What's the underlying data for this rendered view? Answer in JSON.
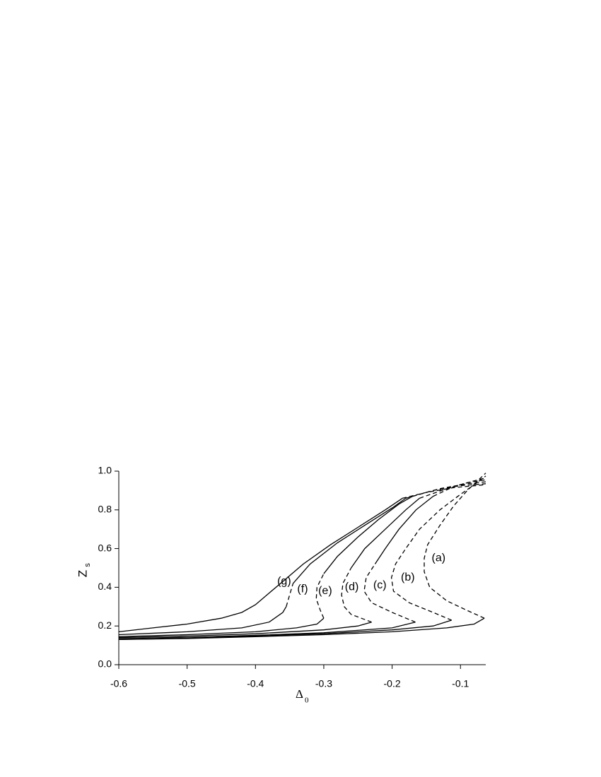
{
  "chart_data": {
    "type": "line",
    "xlabel": {
      "main": "Δ",
      "sub": "0"
    },
    "ylabel": {
      "main": "Z",
      "sub": "s"
    },
    "xlim": [
      -0.6,
      -0.063
    ],
    "ylim": [
      0,
      1
    ],
    "xticks": [
      -0.6,
      -0.5,
      -0.4,
      -0.3,
      -0.2,
      -0.1
    ],
    "yticks": [
      {
        "value": 0,
        "label": "0.0"
      },
      0.2,
      0.4,
      0.6,
      0.8,
      {
        "value": 1,
        "label": "1.0"
      }
    ],
    "grid": false,
    "series": [
      {
        "color": "#000",
        "dashed": false,
        "x": [
          -0.6,
          -0.5,
          -0.4,
          -0.3,
          -0.2,
          -0.12,
          -0.08,
          -0.065
        ],
        "values": [
          0.13,
          0.135,
          0.145,
          0.155,
          0.17,
          0.19,
          0.21,
          0.24
        ]
      },
      {
        "color": "#000",
        "dashed": true,
        "x": [
          -0.065,
          -0.09,
          -0.12,
          -0.145,
          -0.153,
          -0.153,
          -0.148,
          -0.13,
          -0.11,
          -0.09,
          -0.075,
          -0.063
        ],
        "values": [
          0.24,
          0.28,
          0.33,
          0.4,
          0.48,
          0.55,
          0.62,
          0.72,
          0.82,
          0.9,
          0.95,
          0.99
        ]
      },
      {
        "color": "#000",
        "dashed": false,
        "x": [
          -0.6,
          -0.5,
          -0.4,
          -0.3,
          -0.2,
          -0.14,
          -0.113
        ],
        "values": [
          0.13,
          0.137,
          0.148,
          0.16,
          0.18,
          0.2,
          0.23
        ]
      },
      {
        "color": "#000",
        "dashed": true,
        "x": [
          -0.113,
          -0.14,
          -0.175,
          -0.198,
          -0.201,
          -0.195,
          -0.18,
          -0.16,
          -0.13,
          -0.1,
          -0.08,
          -0.063
        ],
        "values": [
          0.23,
          0.27,
          0.32,
          0.38,
          0.45,
          0.52,
          0.6,
          0.7,
          0.8,
          0.88,
          0.93,
          0.975
        ]
      },
      {
        "color": "#000",
        "dashed": false,
        "x": [
          -0.6,
          -0.5,
          -0.4,
          -0.3,
          -0.2,
          -0.166
        ],
        "values": [
          0.135,
          0.142,
          0.152,
          0.165,
          0.19,
          0.22
        ]
      },
      {
        "color": "#000",
        "dashed": true,
        "x": [
          -0.166,
          -0.2,
          -0.23,
          -0.241,
          -0.238,
          -0.225
        ],
        "values": [
          0.22,
          0.27,
          0.32,
          0.38,
          0.45,
          0.52
        ]
      },
      {
        "color": "#000",
        "dashed": false,
        "x": [
          -0.225,
          -0.21,
          -0.19,
          -0.165,
          -0.14
        ],
        "values": [
          0.52,
          0.6,
          0.7,
          0.8,
          0.87
        ]
      },
      {
        "color": "#000",
        "dashed": true,
        "x": [
          -0.14,
          -0.11,
          -0.08,
          -0.063
        ],
        "values": [
          0.87,
          0.92,
          0.95,
          0.965
        ]
      },
      {
        "color": "#000",
        "dashed": false,
        "x": [
          -0.6,
          -0.5,
          -0.4,
          -0.3,
          -0.25,
          -0.23
        ],
        "values": [
          0.14,
          0.148,
          0.16,
          0.18,
          0.2,
          0.22
        ]
      },
      {
        "color": "#000",
        "dashed": true,
        "x": [
          -0.23,
          -0.26,
          -0.27,
          -0.274,
          -0.272,
          -0.26
        ],
        "values": [
          0.22,
          0.26,
          0.3,
          0.36,
          0.42,
          0.5
        ]
      },
      {
        "color": "#000",
        "dashed": false,
        "x": [
          -0.26,
          -0.24,
          -0.21,
          -0.18,
          -0.16
        ],
        "values": [
          0.5,
          0.6,
          0.7,
          0.8,
          0.86
        ]
      },
      {
        "color": "#000",
        "dashed": true,
        "x": [
          -0.16,
          -0.12,
          -0.09,
          -0.063
        ],
        "values": [
          0.86,
          0.91,
          0.94,
          0.955
        ]
      },
      {
        "color": "#000",
        "dashed": false,
        "x": [
          -0.6,
          -0.5,
          -0.4,
          -0.34,
          -0.31,
          -0.3
        ],
        "values": [
          0.145,
          0.155,
          0.17,
          0.19,
          0.21,
          0.24
        ]
      },
      {
        "color": "#000",
        "dashed": true,
        "x": [
          -0.3,
          -0.305,
          -0.311,
          -0.31,
          -0.3
        ],
        "values": [
          0.24,
          0.28,
          0.34,
          0.4,
          0.47
        ]
      },
      {
        "color": "#000",
        "dashed": false,
        "x": [
          -0.3,
          -0.28,
          -0.25,
          -0.22,
          -0.19,
          -0.17
        ],
        "values": [
          0.47,
          0.56,
          0.66,
          0.75,
          0.83,
          0.87
        ]
      },
      {
        "color": "#000",
        "dashed": true,
        "x": [
          -0.17,
          -0.13,
          -0.09,
          -0.063
        ],
        "values": [
          0.87,
          0.91,
          0.935,
          0.945
        ]
      },
      {
        "color": "#000",
        "dashed": false,
        "x": [
          -0.6,
          -0.5,
          -0.42,
          -0.38,
          -0.36,
          -0.355
        ],
        "values": [
          0.155,
          0.17,
          0.19,
          0.22,
          0.27,
          0.3
        ]
      },
      {
        "color": "#000",
        "dashed": true,
        "x": [
          -0.355,
          -0.35,
          -0.345
        ],
        "values": [
          0.3,
          0.36,
          0.42
        ]
      },
      {
        "color": "#000",
        "dashed": false,
        "x": [
          -0.345,
          -0.32,
          -0.28,
          -0.24,
          -0.2,
          -0.18
        ],
        "values": [
          0.42,
          0.52,
          0.63,
          0.72,
          0.81,
          0.86
        ]
      },
      {
        "color": "#000",
        "dashed": true,
        "x": [
          -0.18,
          -0.14,
          -0.1,
          -0.063
        ],
        "values": [
          0.86,
          0.9,
          0.925,
          0.935
        ]
      },
      {
        "color": "#000",
        "dashed": false,
        "x": [
          -0.6,
          -0.55,
          -0.5,
          -0.45,
          -0.42,
          -0.4,
          -0.38,
          -0.36,
          -0.33,
          -0.29,
          -0.25,
          -0.21,
          -0.185
        ],
        "values": [
          0.17,
          0.19,
          0.21,
          0.24,
          0.27,
          0.31,
          0.37,
          0.43,
          0.52,
          0.62,
          0.71,
          0.8,
          0.86
        ]
      },
      {
        "color": "#000",
        "dashed": true,
        "x": [
          -0.185,
          -0.15,
          -0.11,
          -0.063
        ],
        "values": [
          0.86,
          0.89,
          0.915,
          0.93
        ]
      }
    ],
    "annotations": [
      {
        "text": "(a)",
        "x": -0.132,
        "y": 0.55
      },
      {
        "text": "(b)",
        "x": -0.177,
        "y": 0.45
      },
      {
        "text": "(c)",
        "x": -0.218,
        "y": 0.41
      },
      {
        "text": "(d)",
        "x": -0.259,
        "y": 0.4
      },
      {
        "text": "(e)",
        "x": -0.298,
        "y": 0.38
      },
      {
        "text": "(f)",
        "x": -0.331,
        "y": 0.39
      },
      {
        "text": "(g)",
        "x": -0.358,
        "y": 0.43
      }
    ]
  }
}
